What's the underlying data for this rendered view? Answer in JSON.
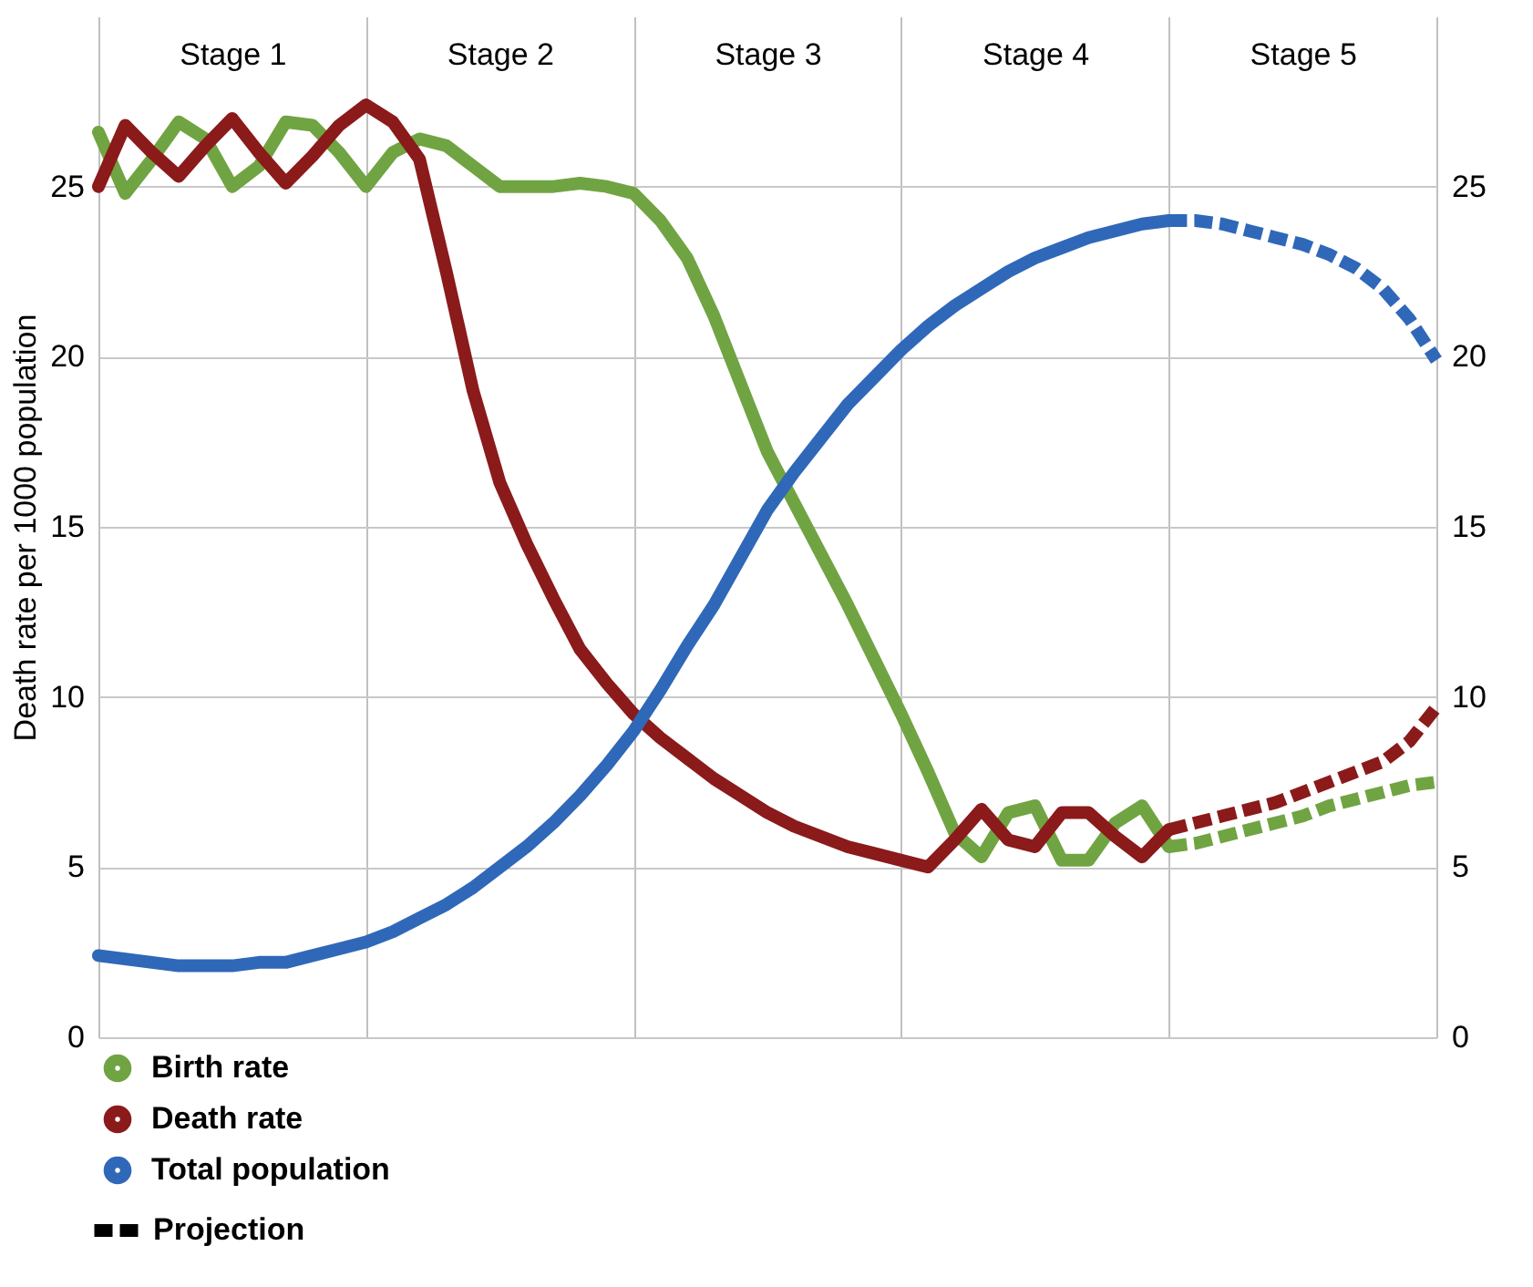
{
  "chart_data": {
    "type": "line",
    "ylabel": "Death rate per 1000 population",
    "categories": [
      null,
      null,
      null,
      null,
      null,
      "Stage 1",
      null,
      null,
      null,
      null,
      null,
      null,
      null,
      null,
      null,
      "Stage 2",
      null,
      null,
      null,
      null,
      null,
      null,
      null,
      null,
      null,
      "Stage 3",
      null,
      null,
      null,
      null,
      null,
      null,
      null,
      null,
      null,
      "Stage 4",
      null,
      null,
      null,
      null,
      null,
      null,
      null,
      null,
      null,
      "Stage 5",
      null,
      null,
      null,
      null,
      null
    ],
    "ylim": [
      0,
      30
    ],
    "yticks": [
      0,
      5,
      10,
      15,
      20,
      25
    ],
    "y2lim": [
      0,
      30
    ],
    "y2ticks": [
      0,
      5,
      10,
      15,
      20,
      25
    ],
    "grid": true,
    "legend": "bottom left",
    "marker": "none",
    "series": [
      {
        "name": "Birth rate",
        "color": "#70a442",
        "line_style": "solid",
        "values": [
          26.6,
          24.8,
          25.8,
          26.9,
          26.4,
          25.0,
          25.6,
          26.9,
          26.8,
          26.0,
          25.0,
          26.0,
          26.4,
          26.2,
          25.6,
          25.0,
          25.0,
          25.0,
          25.1,
          25.0,
          24.8,
          24.0,
          22.9,
          21.2,
          19.2,
          17.2,
          15.7,
          14.2,
          12.7,
          11.1,
          9.5,
          7.8,
          6.0,
          5.3,
          6.6,
          6.8,
          5.2,
          5.2,
          6.3,
          6.8,
          5.6,
          null,
          null,
          null,
          null,
          null,
          null,
          null,
          null,
          null,
          null
        ]
      },
      {
        "name": "Death rate",
        "color": "#8b1a1a",
        "line_style": "solid",
        "values": [
          25.0,
          26.8,
          26.0,
          25.3,
          26.2,
          27.0,
          26.0,
          25.1,
          25.9,
          26.8,
          27.4,
          26.9,
          25.8,
          22.5,
          19.0,
          16.3,
          14.5,
          12.9,
          11.4,
          10.4,
          9.5,
          8.8,
          8.2,
          7.6,
          7.1,
          6.6,
          6.2,
          5.9,
          5.6,
          5.4,
          5.2,
          5.0,
          5.8,
          6.7,
          5.8,
          5.6,
          6.6,
          6.6,
          5.9,
          5.3,
          6.1,
          null,
          null,
          null,
          null,
          null,
          null,
          null,
          null,
          null,
          null
        ]
      },
      {
        "name": "Total population",
        "color": "#2f68b8",
        "line_style": "solid",
        "axis": "y2",
        "values": [
          2.4,
          2.3,
          2.2,
          2.1,
          2.1,
          2.1,
          2.2,
          2.2,
          2.4,
          2.6,
          2.8,
          3.1,
          3.5,
          3.9,
          4.4,
          5.0,
          5.6,
          6.3,
          7.1,
          8.0,
          9.0,
          10.2,
          11.5,
          12.7,
          14.1,
          15.5,
          16.6,
          17.6,
          18.6,
          19.4,
          20.2,
          20.9,
          21.5,
          22.0,
          22.5,
          22.9,
          23.2,
          23.5,
          23.7,
          23.9,
          24.0,
          null,
          null,
          null,
          null,
          null,
          null,
          null,
          null,
          null,
          null
        ]
      },
      {
        "color": "#70a442",
        "line_style": "dashed",
        "values": [
          null,
          null,
          null,
          null,
          null,
          null,
          null,
          null,
          null,
          null,
          null,
          null,
          null,
          null,
          null,
          null,
          null,
          null,
          null,
          null,
          null,
          null,
          null,
          null,
          null,
          null,
          null,
          null,
          null,
          null,
          null,
          null,
          null,
          null,
          null,
          null,
          null,
          null,
          null,
          null,
          5.6,
          5.7,
          5.9,
          6.1,
          6.3,
          6.5,
          6.8,
          7.0,
          7.2,
          7.4,
          7.5
        ]
      },
      {
        "color": "#8b1a1a",
        "line_style": "dashed",
        "values": [
          null,
          null,
          null,
          null,
          null,
          null,
          null,
          null,
          null,
          null,
          null,
          null,
          null,
          null,
          null,
          null,
          null,
          null,
          null,
          null,
          null,
          null,
          null,
          null,
          null,
          null,
          null,
          null,
          null,
          null,
          null,
          null,
          null,
          null,
          null,
          null,
          null,
          null,
          null,
          null,
          6.1,
          6.3,
          6.5,
          6.7,
          6.9,
          7.2,
          7.5,
          7.8,
          8.1,
          8.7,
          9.7
        ]
      },
      {
        "color": "#2f68b8",
        "line_style": "dashed",
        "axis": "y2",
        "values": [
          null,
          null,
          null,
          null,
          null,
          null,
          null,
          null,
          null,
          null,
          null,
          null,
          null,
          null,
          null,
          null,
          null,
          null,
          null,
          null,
          null,
          null,
          null,
          null,
          null,
          null,
          null,
          null,
          null,
          null,
          null,
          null,
          null,
          null,
          null,
          null,
          null,
          null,
          null,
          null,
          24.0,
          24.0,
          23.9,
          23.7,
          23.5,
          23.3,
          23.0,
          22.6,
          22.0,
          21.1,
          19.9
        ]
      }
    ],
    "annotations": [
      "Projection"
    ]
  }
}
